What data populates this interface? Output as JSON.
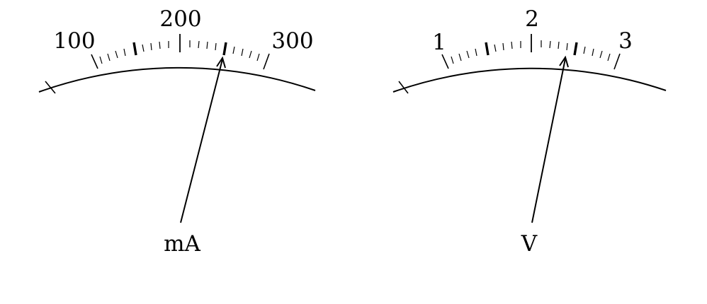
{
  "meters": [
    {
      "id": "milliammeter",
      "unit_label": "mA",
      "scale_labels": [
        "100",
        "200",
        "300"
      ],
      "reading": 240
    },
    {
      "id": "voltmeter",
      "unit_label": "V",
      "scale_labels": [
        "1",
        "2",
        "3"
      ],
      "reading": 2.4
    }
  ]
}
